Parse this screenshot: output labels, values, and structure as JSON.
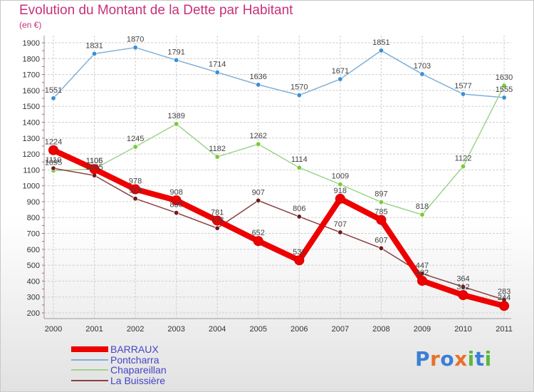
{
  "header": {
    "title": "Evolution du Montant de la Dette par Habitant",
    "subtitle": "(en €)"
  },
  "logo": {
    "letters": [
      "P",
      "r",
      "o",
      "x",
      "i",
      "t",
      "i"
    ],
    "colors": [
      "#3a7fd5",
      "#e8702a",
      "#3a7fd5",
      "#e8702a",
      "#5cb83c",
      "#3a7fd5",
      "#5cb83c"
    ]
  },
  "chart_data": {
    "type": "line",
    "x": [
      "2000",
      "2001",
      "2002",
      "2003",
      "2004",
      "2005",
      "2006",
      "2007",
      "2008",
      "2009",
      "2010",
      "2011"
    ],
    "yticks": [
      200,
      300,
      400,
      500,
      600,
      700,
      800,
      900,
      1000,
      1100,
      1200,
      1300,
      1400,
      1500,
      1600,
      1700,
      1800,
      1900
    ],
    "ylim": [
      200,
      1900
    ],
    "grid": true,
    "legend_position": "bottom-left",
    "series": [
      {
        "name": "BARRAUX",
        "color": "#ee0000",
        "marker_color": "#ee0000",
        "width": "thick",
        "values": [
          1224,
          1105,
          978,
          908,
          781,
          652,
          531,
          918,
          785,
          402,
          312,
          244
        ]
      },
      {
        "name": "Pontcharra",
        "color": "#7fb0d8",
        "marker_color": "#3a8fd5",
        "width": "thin",
        "values": [
          1551,
          1831,
          1870,
          1791,
          1714,
          1636,
          1570,
          1671,
          1851,
          1703,
          1577,
          1555
        ]
      },
      {
        "name": "Chapareillan",
        "color": "#9ed48a",
        "marker_color": "#77cc33",
        "width": "thin",
        "values": [
          1095,
          1106,
          1245,
          1389,
          1182,
          1262,
          1114,
          1009,
          897,
          818,
          1122,
          1630
        ]
      },
      {
        "name": "La Buissière",
        "color": "#8a4040",
        "marker_color": "#6e1a1a",
        "width": "thin",
        "values": [
          1110,
          1065,
          919,
          830,
          733,
          907,
          806,
          707,
          607,
          447,
          364,
          283
        ]
      }
    ]
  }
}
